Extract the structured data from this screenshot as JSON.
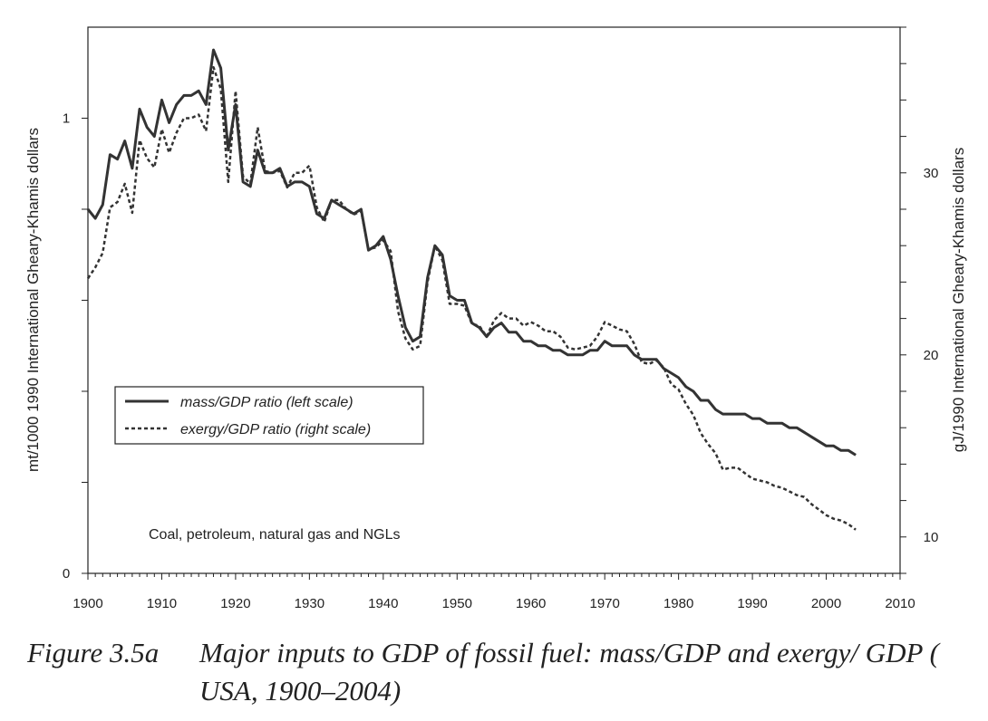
{
  "chart_data": {
    "type": "line",
    "x_axis": {
      "min": 1900,
      "max": 2010,
      "major_step": 10,
      "minor_step": 1,
      "tick_labels": [
        "1900",
        "1910",
        "1920",
        "1930",
        "1940",
        "1950",
        "1960",
        "1970",
        "1980",
        "1990",
        "2000",
        "2010"
      ]
    },
    "y_left": {
      "min": 0,
      "max": 1.2,
      "label": "mt/1000 1990 International Gheary-Khamis dollars",
      "ticks": [
        0,
        0.2,
        0.4,
        0.6,
        0.8,
        1.0
      ],
      "tick_labels": {
        "0": "0",
        "1": "1"
      }
    },
    "y_right": {
      "min": 8,
      "max": 38,
      "label": "gJ/1990 International Gheary-Khamis dollars",
      "ticks": [
        8,
        10,
        12,
        14,
        16,
        18,
        20,
        22,
        24,
        26,
        28,
        30,
        32,
        34,
        36,
        38
      ],
      "tick_labels": {
        "10": "10",
        "20": "20",
        "30": "30"
      }
    },
    "series": [
      {
        "name": "mass/GDP ratio (left scale)",
        "axis": "left",
        "style": "solid",
        "x": [
          1900,
          1901,
          1902,
          1903,
          1904,
          1905,
          1906,
          1907,
          1908,
          1909,
          1910,
          1911,
          1912,
          1913,
          1914,
          1915,
          1916,
          1917,
          1918,
          1919,
          1920,
          1921,
          1922,
          1923,
          1924,
          1925,
          1926,
          1927,
          1928,
          1929,
          1930,
          1931,
          1932,
          1933,
          1934,
          1935,
          1936,
          1937,
          1938,
          1939,
          1940,
          1941,
          1942,
          1943,
          1944,
          1945,
          1946,
          1947,
          1948,
          1949,
          1950,
          1951,
          1952,
          1953,
          1954,
          1955,
          1956,
          1957,
          1958,
          1959,
          1960,
          1961,
          1962,
          1963,
          1964,
          1965,
          1966,
          1967,
          1968,
          1969,
          1970,
          1971,
          1972,
          1973,
          1974,
          1975,
          1976,
          1977,
          1978,
          1979,
          1980,
          1981,
          1982,
          1983,
          1984,
          1985,
          1986,
          1987,
          1988,
          1989,
          1990,
          1991,
          1992,
          1993,
          1994,
          1995,
          1996,
          1997,
          1998,
          1999,
          2000,
          2001,
          2002,
          2003,
          2004
        ],
        "values": [
          0.8,
          0.78,
          0.81,
          0.92,
          0.91,
          0.95,
          0.89,
          1.02,
          0.98,
          0.96,
          1.04,
          0.99,
          1.03,
          1.05,
          1.05,
          1.06,
          1.03,
          1.15,
          1.11,
          0.93,
          1.03,
          0.86,
          0.85,
          0.93,
          0.88,
          0.88,
          0.89,
          0.85,
          0.86,
          0.86,
          0.85,
          0.79,
          0.78,
          0.82,
          0.81,
          0.8,
          0.79,
          0.8,
          0.71,
          0.72,
          0.74,
          0.69,
          0.61,
          0.54,
          0.51,
          0.52,
          0.65,
          0.72,
          0.7,
          0.61,
          0.6,
          0.6,
          0.55,
          0.54,
          0.52,
          0.54,
          0.55,
          0.53,
          0.53,
          0.51,
          0.51,
          0.5,
          0.5,
          0.49,
          0.49,
          0.48,
          0.48,
          0.48,
          0.49,
          0.49,
          0.51,
          0.5,
          0.5,
          0.5,
          0.48,
          0.47,
          0.47,
          0.47,
          0.45,
          0.44,
          0.43,
          0.41,
          0.4,
          0.38,
          0.38,
          0.36,
          0.35,
          0.35,
          0.35,
          0.35,
          0.34,
          0.34,
          0.33,
          0.33,
          0.33,
          0.32,
          0.32,
          0.31,
          0.3,
          0.29,
          0.28,
          0.28,
          0.27,
          0.27,
          0.26
        ]
      },
      {
        "name": "exergy/GDP ratio (right scale)",
        "axis": "right",
        "style": "dotted",
        "x": [
          1900,
          1901,
          1902,
          1903,
          1904,
          1905,
          1906,
          1907,
          1908,
          1909,
          1910,
          1911,
          1912,
          1913,
          1914,
          1915,
          1916,
          1917,
          1918,
          1919,
          1920,
          1921,
          1922,
          1923,
          1924,
          1925,
          1926,
          1927,
          1928,
          1929,
          1930,
          1931,
          1932,
          1933,
          1934,
          1935,
          1936,
          1937,
          1938,
          1939,
          1940,
          1941,
          1942,
          1943,
          1944,
          1945,
          1946,
          1947,
          1948,
          1949,
          1950,
          1951,
          1952,
          1953,
          1954,
          1955,
          1956,
          1957,
          1958,
          1959,
          1960,
          1961,
          1962,
          1963,
          1964,
          1965,
          1966,
          1967,
          1968,
          1969,
          1970,
          1971,
          1972,
          1973,
          1974,
          1975,
          1976,
          1977,
          1978,
          1979,
          1980,
          1981,
          1982,
          1983,
          1984,
          1985,
          1986,
          1987,
          1988,
          1989,
          1990,
          1991,
          1992,
          1993,
          1994,
          1995,
          1996,
          1997,
          1998,
          1999,
          2000,
          2001,
          2002,
          2003,
          2004
        ],
        "values": [
          24.2,
          24.8,
          25.6,
          28.1,
          28.4,
          29.4,
          27.8,
          31.8,
          30.8,
          30.3,
          32.4,
          31.1,
          32.2,
          33.0,
          33.0,
          33.2,
          32.3,
          35.8,
          34.6,
          29.5,
          34.5,
          29.8,
          29.4,
          32.5,
          30.1,
          30.0,
          30.1,
          29.2,
          30.0,
          30.0,
          30.4,
          28.1,
          27.3,
          28.5,
          28.5,
          28.0,
          27.7,
          27.9,
          25.8,
          25.9,
          26.3,
          25.7,
          22.4,
          20.9,
          20.3,
          20.5,
          24.0,
          26.0,
          25.2,
          22.8,
          22.8,
          22.7,
          21.7,
          21.6,
          21.0,
          21.9,
          22.3,
          22.0,
          22.0,
          21.6,
          21.8,
          21.6,
          21.3,
          21.3,
          21.0,
          20.4,
          20.3,
          20.4,
          20.5,
          21.0,
          21.8,
          21.6,
          21.4,
          21.3,
          20.6,
          19.6,
          19.5,
          19.7,
          19.3,
          18.4,
          18.1,
          17.3,
          16.7,
          15.7,
          15.1,
          14.6,
          13.7,
          13.8,
          13.8,
          13.5,
          13.2,
          13.1,
          13.0,
          12.8,
          12.7,
          12.5,
          12.3,
          12.2,
          11.8,
          11.5,
          11.2,
          11.0,
          10.9,
          10.7,
          10.4
        ]
      }
    ],
    "legend": {
      "position": "left-middle",
      "entries": [
        "mass/GDP ratio (left scale)",
        "exergy/GDP ratio (right scale)"
      ]
    },
    "annotation": "Coal, petroleum, natural gas and NGLs",
    "grid": false
  },
  "caption": {
    "label": "Figure 3.5a",
    "text": "Major inputs to GDP of fossil fuel: mass/GDP and exergy/ GDP ( USA, 1900–2004)"
  }
}
